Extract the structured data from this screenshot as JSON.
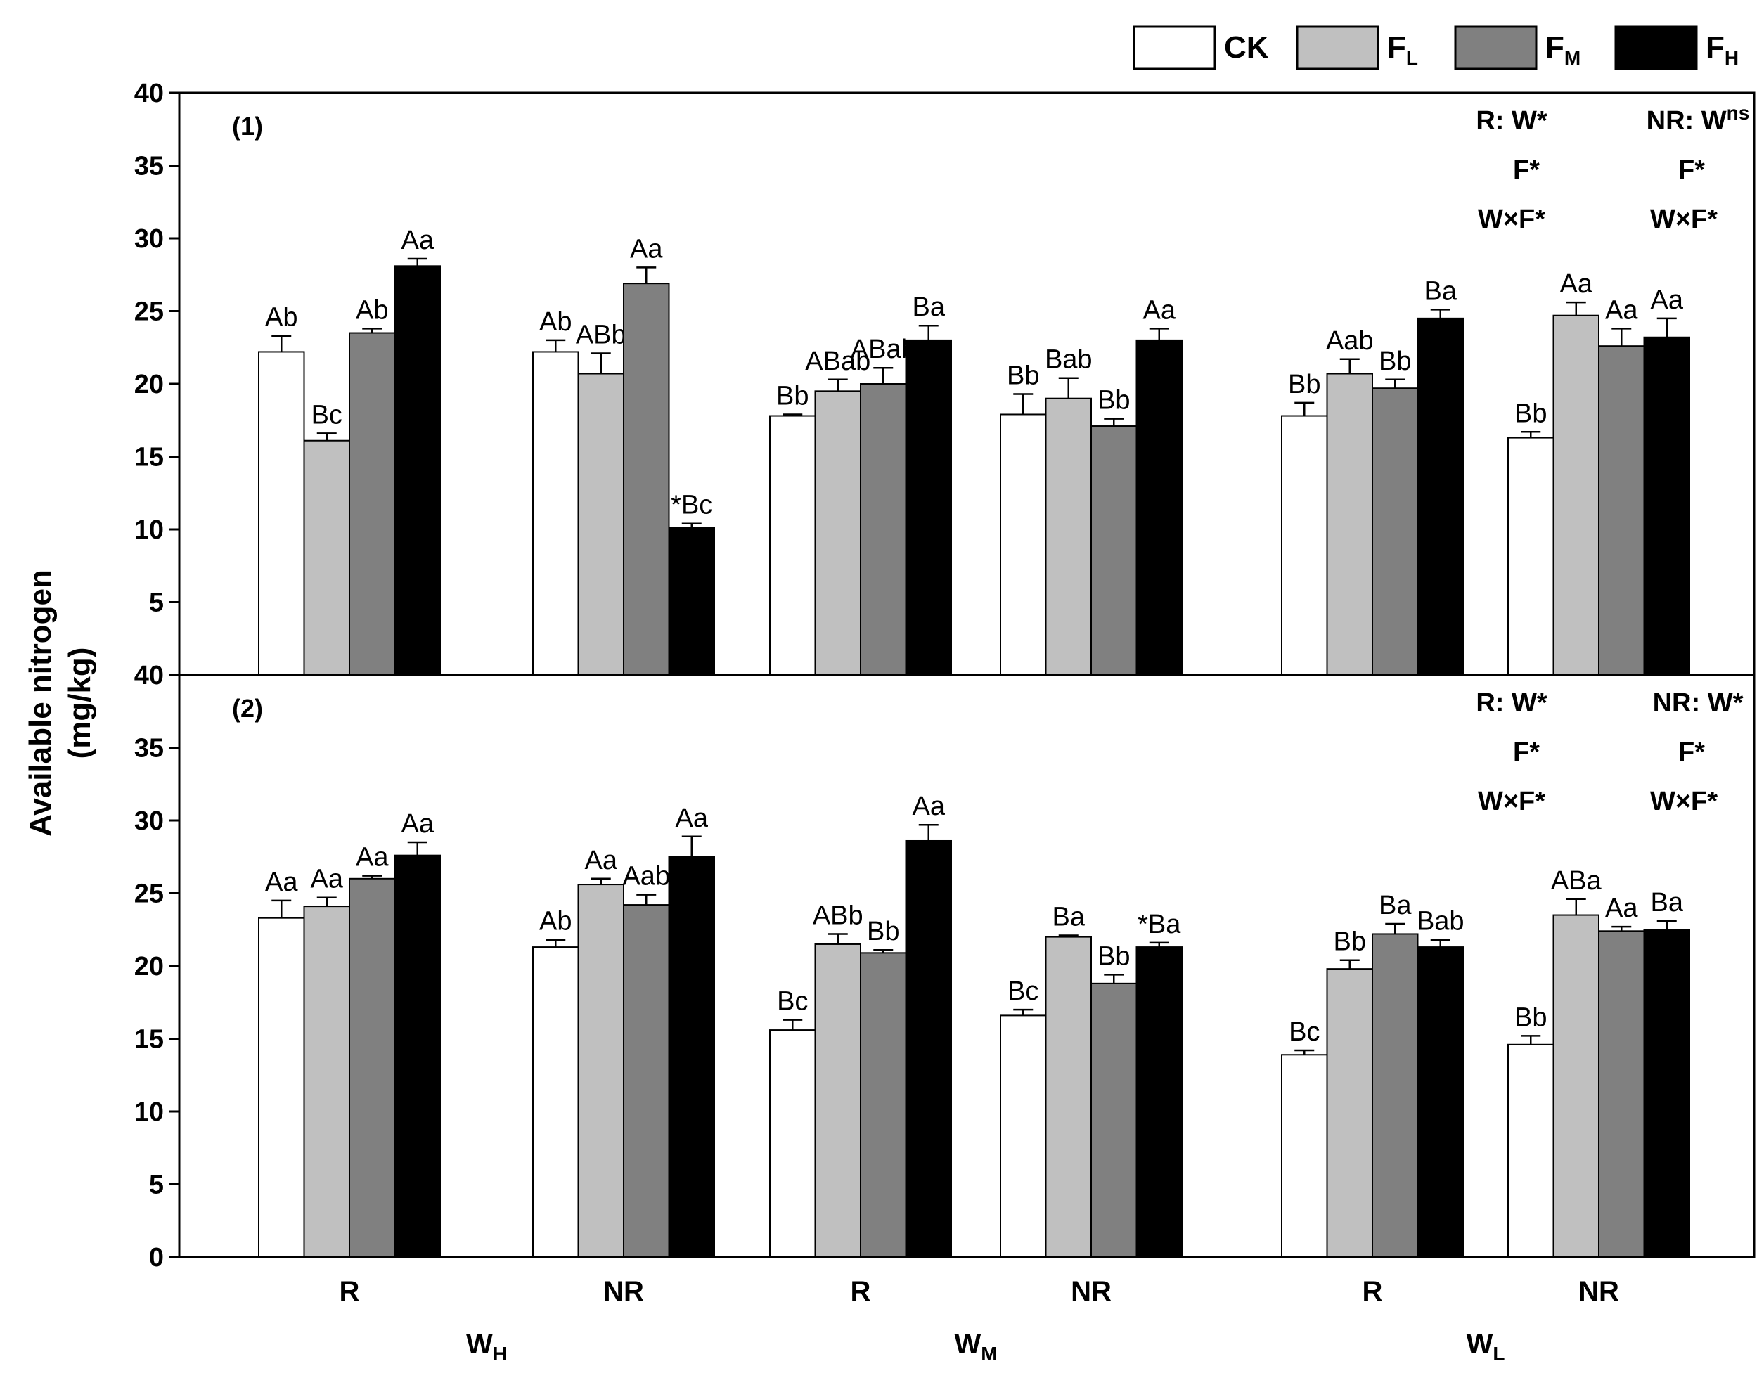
{
  "chart_data": {
    "type": "bar",
    "ylabel": "Available nitrogen",
    "ylabel_unit": "(mg/kg)",
    "ylim": [
      0,
      40
    ],
    "y_ticks": [
      "0",
      "5",
      "10",
      "15",
      "20",
      "25",
      "30",
      "35",
      "40"
    ],
    "legend": [
      {
        "key": "CK",
        "label": "CK",
        "sub": "",
        "color": "#ffffff"
      },
      {
        "key": "FL",
        "label": "F",
        "sub": "L",
        "color": "#c0c0c0"
      },
      {
        "key": "FM",
        "label": "F",
        "sub": "M",
        "color": "#808080"
      },
      {
        "key": "FH",
        "label": "F",
        "sub": "H",
        "color": "#000000"
      }
    ],
    "water_groups": [
      {
        "label": "W",
        "sub": "H"
      },
      {
        "label": "W",
        "sub": "M"
      },
      {
        "label": "W",
        "sub": "L"
      }
    ],
    "subgroups": [
      "R",
      "NR",
      "R",
      "NR",
      "R",
      "NR"
    ],
    "panels": [
      {
        "label": "(1)",
        "stats": {
          "R": {
            "title": "R: W*",
            "lines": [
              "F*",
              "W×F*"
            ]
          },
          "NR": {
            "title": "NR: W",
            "title_sup": "ns",
            "lines": [
              "F*",
              "W×F*"
            ]
          }
        },
        "groups": [
          {
            "values": [
              22.2,
              16.1,
              23.5,
              28.1
            ],
            "errors": [
              1.1,
              0.5,
              0.3,
              0.5
            ],
            "letters": [
              "Ab",
              "Bc",
              "Ab",
              "Aa"
            ]
          },
          {
            "values": [
              22.2,
              20.7,
              26.9,
              10.1
            ],
            "errors": [
              0.8,
              1.4,
              1.1,
              0.3
            ],
            "letters": [
              "Ab",
              "ABb",
              "Aa",
              "*Bc"
            ]
          },
          {
            "values": [
              17.8,
              19.5,
              20.0,
              23.0
            ],
            "errors": [
              0.1,
              0.8,
              1.1,
              1.0
            ],
            "letters": [
              "Bb",
              "ABab",
              "ABab",
              "Ba"
            ]
          },
          {
            "values": [
              17.9,
              19.0,
              17.1,
              23.0
            ],
            "errors": [
              1.4,
              1.4,
              0.5,
              0.8
            ],
            "letters": [
              "Bb",
              "Bab",
              "Bb",
              "Aa"
            ]
          },
          {
            "values": [
              17.8,
              20.7,
              19.7,
              24.5
            ],
            "errors": [
              0.9,
              1.0,
              0.6,
              0.6
            ],
            "letters": [
              "Bb",
              "Aab",
              "Bb",
              "Ba"
            ]
          },
          {
            "values": [
              16.3,
              24.7,
              22.6,
              23.2
            ],
            "errors": [
              0.4,
              0.9,
              1.2,
              1.3
            ],
            "letters": [
              "Bb",
              "Aa",
              "Aa",
              "Aa"
            ]
          }
        ]
      },
      {
        "label": "(2)",
        "stats": {
          "R": {
            "title": "R: W*",
            "lines": [
              "F*",
              "W×F*"
            ]
          },
          "NR": {
            "title": "NR: W*",
            "title_sup": "",
            "lines": [
              "F*",
              "W×F*"
            ]
          }
        },
        "groups": [
          {
            "values": [
              23.3,
              24.1,
              26.0,
              27.6
            ],
            "errors": [
              1.2,
              0.6,
              0.2,
              0.9
            ],
            "letters": [
              "Aa",
              "Aa",
              "Aa",
              "Aa"
            ]
          },
          {
            "values": [
              21.3,
              25.6,
              24.2,
              27.5
            ],
            "errors": [
              0.5,
              0.4,
              0.7,
              1.4
            ],
            "letters": [
              "Ab",
              "Aa",
              "Aab",
              "Aa"
            ]
          },
          {
            "values": [
              15.6,
              21.5,
              20.9,
              28.6
            ],
            "errors": [
              0.7,
              0.7,
              0.2,
              1.1
            ],
            "letters": [
              "Bc",
              "ABb",
              "Bb",
              "Aa"
            ]
          },
          {
            "values": [
              16.6,
              22.0,
              18.8,
              21.3
            ],
            "errors": [
              0.4,
              0.1,
              0.6,
              0.3
            ],
            "letters": [
              "Bc",
              "Ba",
              "Bb",
              "*Ba"
            ]
          },
          {
            "values": [
              13.9,
              19.8,
              22.2,
              21.3
            ],
            "errors": [
              0.3,
              0.6,
              0.7,
              0.5
            ],
            "letters": [
              "Bc",
              "Bb",
              "Ba",
              "Bab"
            ]
          },
          {
            "values": [
              14.6,
              23.5,
              22.4,
              22.5
            ],
            "errors": [
              0.6,
              1.1,
              0.3,
              0.6
            ],
            "letters": [
              "Bb",
              "ABa",
              "Aa",
              "Ba"
            ]
          }
        ]
      }
    ]
  }
}
